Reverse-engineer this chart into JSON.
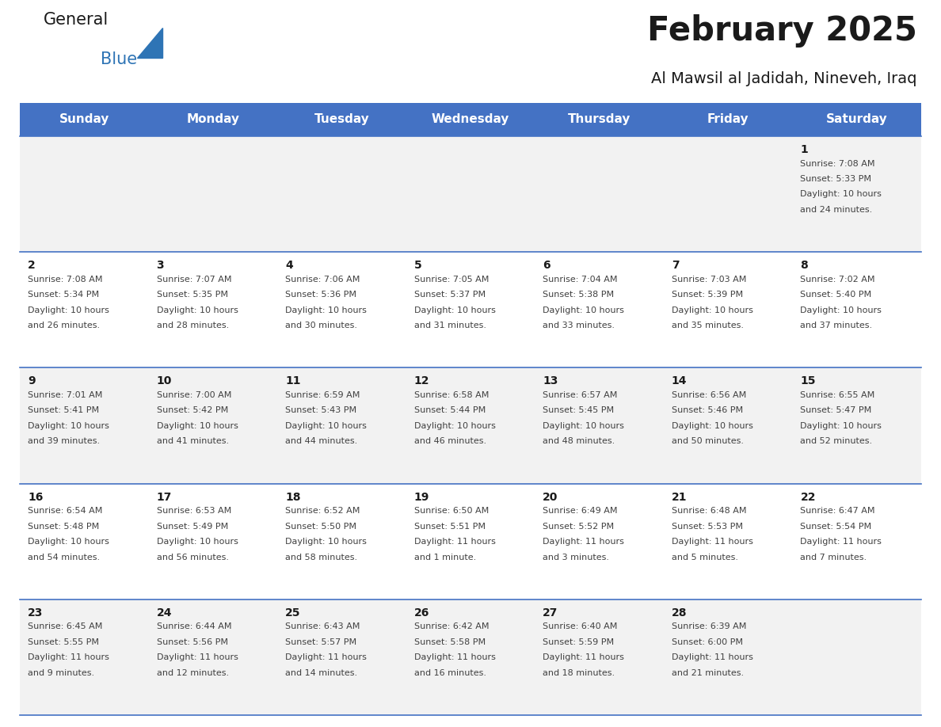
{
  "title": "February 2025",
  "subtitle": "Al Mawsil al Jadidah, Nineveh, Iraq",
  "days_of_week": [
    "Sunday",
    "Monday",
    "Tuesday",
    "Wednesday",
    "Thursday",
    "Friday",
    "Saturday"
  ],
  "header_bg": "#4472C4",
  "header_text": "#FFFFFF",
  "row_bg_odd": "#F2F2F2",
  "row_bg_even": "#FFFFFF",
  "cell_text_color": "#404040",
  "day_number_color": "#1a1a1a",
  "border_color": "#4472C4",
  "logo_general_color": "#1a1a1a",
  "logo_blue_color": "#2E74B5",
  "calendar_data": [
    [
      null,
      null,
      null,
      null,
      null,
      null,
      {
        "day": 1,
        "sunrise": "7:08 AM",
        "sunset": "5:33 PM",
        "daylight": "10 hours and 24 minutes."
      }
    ],
    [
      {
        "day": 2,
        "sunrise": "7:08 AM",
        "sunset": "5:34 PM",
        "daylight": "10 hours and 26 minutes."
      },
      {
        "day": 3,
        "sunrise": "7:07 AM",
        "sunset": "5:35 PM",
        "daylight": "10 hours and 28 minutes."
      },
      {
        "day": 4,
        "sunrise": "7:06 AM",
        "sunset": "5:36 PM",
        "daylight": "10 hours and 30 minutes."
      },
      {
        "day": 5,
        "sunrise": "7:05 AM",
        "sunset": "5:37 PM",
        "daylight": "10 hours and 31 minutes."
      },
      {
        "day": 6,
        "sunrise": "7:04 AM",
        "sunset": "5:38 PM",
        "daylight": "10 hours and 33 minutes."
      },
      {
        "day": 7,
        "sunrise": "7:03 AM",
        "sunset": "5:39 PM",
        "daylight": "10 hours and 35 minutes."
      },
      {
        "day": 8,
        "sunrise": "7:02 AM",
        "sunset": "5:40 PM",
        "daylight": "10 hours and 37 minutes."
      }
    ],
    [
      {
        "day": 9,
        "sunrise": "7:01 AM",
        "sunset": "5:41 PM",
        "daylight": "10 hours and 39 minutes."
      },
      {
        "day": 10,
        "sunrise": "7:00 AM",
        "sunset": "5:42 PM",
        "daylight": "10 hours and 41 minutes."
      },
      {
        "day": 11,
        "sunrise": "6:59 AM",
        "sunset": "5:43 PM",
        "daylight": "10 hours and 44 minutes."
      },
      {
        "day": 12,
        "sunrise": "6:58 AM",
        "sunset": "5:44 PM",
        "daylight": "10 hours and 46 minutes."
      },
      {
        "day": 13,
        "sunrise": "6:57 AM",
        "sunset": "5:45 PM",
        "daylight": "10 hours and 48 minutes."
      },
      {
        "day": 14,
        "sunrise": "6:56 AM",
        "sunset": "5:46 PM",
        "daylight": "10 hours and 50 minutes."
      },
      {
        "day": 15,
        "sunrise": "6:55 AM",
        "sunset": "5:47 PM",
        "daylight": "10 hours and 52 minutes."
      }
    ],
    [
      {
        "day": 16,
        "sunrise": "6:54 AM",
        "sunset": "5:48 PM",
        "daylight": "10 hours and 54 minutes."
      },
      {
        "day": 17,
        "sunrise": "6:53 AM",
        "sunset": "5:49 PM",
        "daylight": "10 hours and 56 minutes."
      },
      {
        "day": 18,
        "sunrise": "6:52 AM",
        "sunset": "5:50 PM",
        "daylight": "10 hours and 58 minutes."
      },
      {
        "day": 19,
        "sunrise": "6:50 AM",
        "sunset": "5:51 PM",
        "daylight": "11 hours and 1 minute."
      },
      {
        "day": 20,
        "sunrise": "6:49 AM",
        "sunset": "5:52 PM",
        "daylight": "11 hours and 3 minutes."
      },
      {
        "day": 21,
        "sunrise": "6:48 AM",
        "sunset": "5:53 PM",
        "daylight": "11 hours and 5 minutes."
      },
      {
        "day": 22,
        "sunrise": "6:47 AM",
        "sunset": "5:54 PM",
        "daylight": "11 hours and 7 minutes."
      }
    ],
    [
      {
        "day": 23,
        "sunrise": "6:45 AM",
        "sunset": "5:55 PM",
        "daylight": "11 hours and 9 minutes."
      },
      {
        "day": 24,
        "sunrise": "6:44 AM",
        "sunset": "5:56 PM",
        "daylight": "11 hours and 12 minutes."
      },
      {
        "day": 25,
        "sunrise": "6:43 AM",
        "sunset": "5:57 PM",
        "daylight": "11 hours and 14 minutes."
      },
      {
        "day": 26,
        "sunrise": "6:42 AM",
        "sunset": "5:58 PM",
        "daylight": "11 hours and 16 minutes."
      },
      {
        "day": 27,
        "sunrise": "6:40 AM",
        "sunset": "5:59 PM",
        "daylight": "11 hours and 18 minutes."
      },
      {
        "day": 28,
        "sunrise": "6:39 AM",
        "sunset": "6:00 PM",
        "daylight": "11 hours and 21 minutes."
      },
      null
    ]
  ]
}
